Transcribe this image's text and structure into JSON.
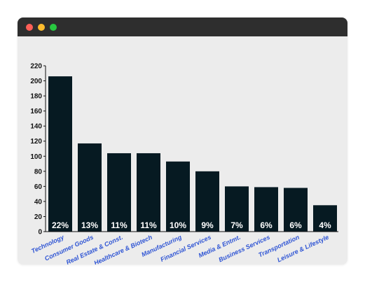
{
  "window": {
    "controls": [
      {
        "name": "close",
        "color": "#ff5f57"
      },
      {
        "name": "minimize",
        "color": "#febc2e"
      },
      {
        "name": "zoom",
        "color": "#28c840"
      }
    ]
  },
  "colors": {
    "bar": "#061a22",
    "axis": "#111111",
    "category_label": "#2f55d4",
    "bar_label": "#ffffff"
  },
  "chart_data": {
    "type": "bar",
    "title": "",
    "xlabel": "",
    "ylabel": "",
    "ylim": [
      0,
      220
    ],
    "yticks": [
      0,
      20,
      40,
      60,
      80,
      100,
      120,
      140,
      160,
      180,
      200,
      220
    ],
    "grid": false,
    "legend": "none",
    "categories": [
      "Technology",
      "Consumer Goods",
      "Real Estate & Const.",
      "Healthcare & Biotech",
      "Manufacturing",
      "Financial Services",
      "Media & Entmt.",
      "Business Services",
      "Transportation",
      "Leisure & Lifestyle"
    ],
    "values": [
      206,
      117,
      104,
      104,
      93,
      80,
      60,
      59,
      58,
      35
    ],
    "data_labels": [
      "22%",
      "13%",
      "11%",
      "11%",
      "10%",
      "9%",
      "7%",
      "6%",
      "6%",
      "4%"
    ]
  }
}
